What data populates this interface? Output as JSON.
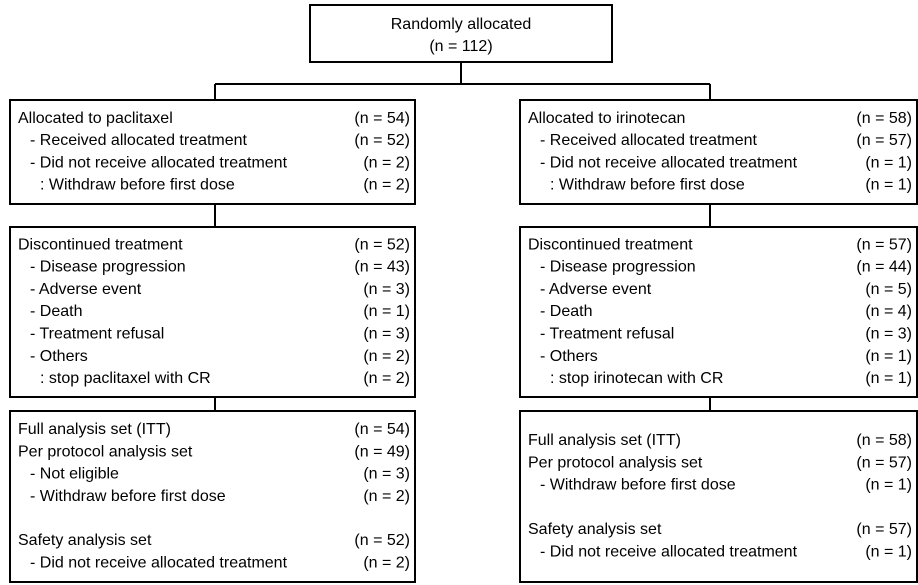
{
  "top": {
    "title": "Randomly allocated",
    "count": "(n = 112)"
  },
  "arms": [
    {
      "boxes": [
        {
          "sections": [
            [
              {
                "label": "Allocated to paclitaxel",
                "count": "(n = 54)"
              },
              {
                "label": "- Received allocated treatment",
                "count": "(n = 52)"
              },
              {
                "label": "- Did not receive allocated treatment",
                "count": "(n = 2)"
              },
              {
                "label": ": Withdraw before first dose",
                "count": "(n = 2)"
              }
            ]
          ]
        },
        {
          "sections": [
            [
              {
                "label": "Discontinued treatment",
                "count": "(n = 52)"
              },
              {
                "label": "- Disease progression",
                "count": "(n = 43)"
              },
              {
                "label": "- Adverse event",
                "count": "(n = 3)"
              },
              {
                "label": "- Death",
                "count": "(n = 1)"
              },
              {
                "label": "- Treatment refusal",
                "count": "(n = 3)"
              },
              {
                "label": "- Others",
                "count": "(n = 2)"
              },
              {
                "label": ": stop paclitaxel with CR",
                "count": "(n = 2)"
              }
            ]
          ]
        },
        {
          "sections": [
            [
              {
                "label": "Full analysis set (ITT)",
                "count": "(n = 54)"
              },
              {
                "label": "Per protocol analysis set",
                "count": "(n = 49)"
              },
              {
                "label": "- Not eligible",
                "count": "(n = 3)"
              },
              {
                "label": "- Withdraw before first dose",
                "count": "(n = 2)"
              }
            ],
            [
              {
                "label": "Safety analysis set",
                "count": "(n = 52)"
              },
              {
                "label": "- Did not receive allocated treatment",
                "count": "(n = 2)"
              }
            ]
          ]
        }
      ]
    },
    {
      "boxes": [
        {
          "sections": [
            [
              {
                "label": "Allocated to irinotecan",
                "count": "(n = 58)"
              },
              {
                "label": "- Received allocated treatment",
                "count": "(n = 57)"
              },
              {
                "label": "- Did not receive allocated treatment",
                "count": "(n = 1)"
              },
              {
                "label": ": Withdraw before first dose",
                "count": "(n = 1)"
              }
            ]
          ]
        },
        {
          "sections": [
            [
              {
                "label": "Discontinued treatment",
                "count": "(n = 57)"
              },
              {
                "label": "- Disease progression",
                "count": "(n = 44)"
              },
              {
                "label": "- Adverse event",
                "count": "(n = 5)"
              },
              {
                "label": "- Death",
                "count": "(n = 4)"
              },
              {
                "label": "- Treatment refusal",
                "count": "(n = 3)"
              },
              {
                "label": "- Others",
                "count": "(n = 1)"
              },
              {
                "label": ": stop irinotecan with CR",
                "count": "(n = 1)"
              }
            ]
          ]
        },
        {
          "sections": [
            [
              {
                "label": "Full analysis set (ITT)",
                "count": "(n = 58)"
              },
              {
                "label": "Per protocol analysis set",
                "count": "(n = 57)"
              },
              {
                "label": "- Withdraw before first dose",
                "count": "(n = 1)"
              }
            ],
            [
              {
                "label": "Safety analysis set",
                "count": "(n = 57)"
              },
              {
                "label": "- Did not receive allocated treatment",
                "count": "(n = 1)"
              }
            ]
          ]
        }
      ]
    }
  ]
}
